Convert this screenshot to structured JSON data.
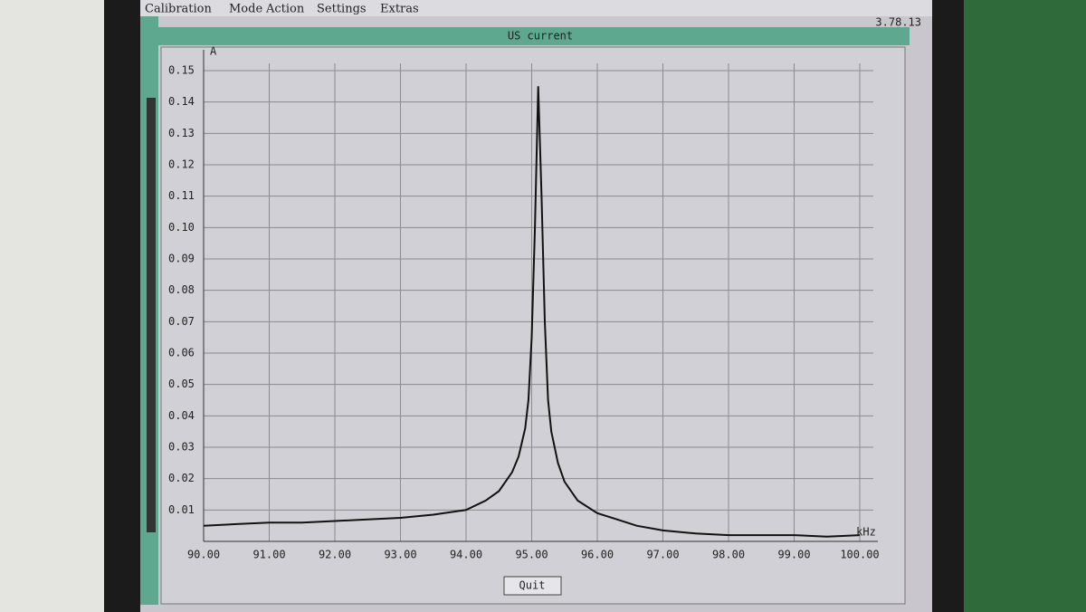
{
  "menu": [
    "Calibration",
    "Mode",
    "Action",
    "Settings",
    "Extras"
  ],
  "version": "3.78.13",
  "window_title": "US current",
  "button": "Quit",
  "chart_data": {
    "type": "line",
    "y_label": "A",
    "x_label": "kHz",
    "x": [
      90,
      90.5,
      91,
      91.5,
      92,
      92.5,
      93,
      93.5,
      94,
      94.3,
      94.5,
      94.7,
      94.8,
      94.9,
      94.95,
      95.0,
      95.05,
      95.1,
      95.15,
      95.2,
      95.25,
      95.3,
      95.4,
      95.5,
      95.7,
      96,
      96.3,
      96.6,
      97,
      97.5,
      98,
      98.5,
      99,
      99.5,
      100
    ],
    "values": [
      0.005,
      0.0055,
      0.006,
      0.006,
      0.0065,
      0.007,
      0.0075,
      0.0085,
      0.01,
      0.013,
      0.016,
      0.022,
      0.027,
      0.036,
      0.045,
      0.065,
      0.1,
      0.145,
      0.11,
      0.07,
      0.045,
      0.035,
      0.025,
      0.019,
      0.013,
      0.009,
      0.007,
      0.005,
      0.0035,
      0.0025,
      0.002,
      0.002,
      0.002,
      0.0015,
      0.002
    ],
    "color": "#111111",
    "xlim": [
      90,
      100
    ],
    "xticks": [
      {
        "value": 90,
        "label": "90.00"
      },
      {
        "value": 91,
        "label": "91.00"
      },
      {
        "value": 92,
        "label": "92.00"
      },
      {
        "value": 93,
        "label": "93.00"
      },
      {
        "value": 94,
        "label": "94.00"
      },
      {
        "value": 95,
        "label": "95.00"
      },
      {
        "value": 96,
        "label": "96.00"
      },
      {
        "value": 97,
        "label": "97.00"
      },
      {
        "value": 98,
        "label": "98.00"
      },
      {
        "value": 99,
        "label": "99.00"
      },
      {
        "value": 100,
        "label": "100.00"
      }
    ],
    "ylim": [
      0,
      0.15
    ],
    "yticks": [
      0.01,
      0.02,
      0.03,
      0.04,
      0.05,
      0.06,
      0.07,
      0.08,
      0.09,
      {
        "value": 0.1,
        "label": "0.10"
      },
      0.11,
      0.12,
      0.13,
      0.14,
      0.15
    ],
    "grid": true
  }
}
